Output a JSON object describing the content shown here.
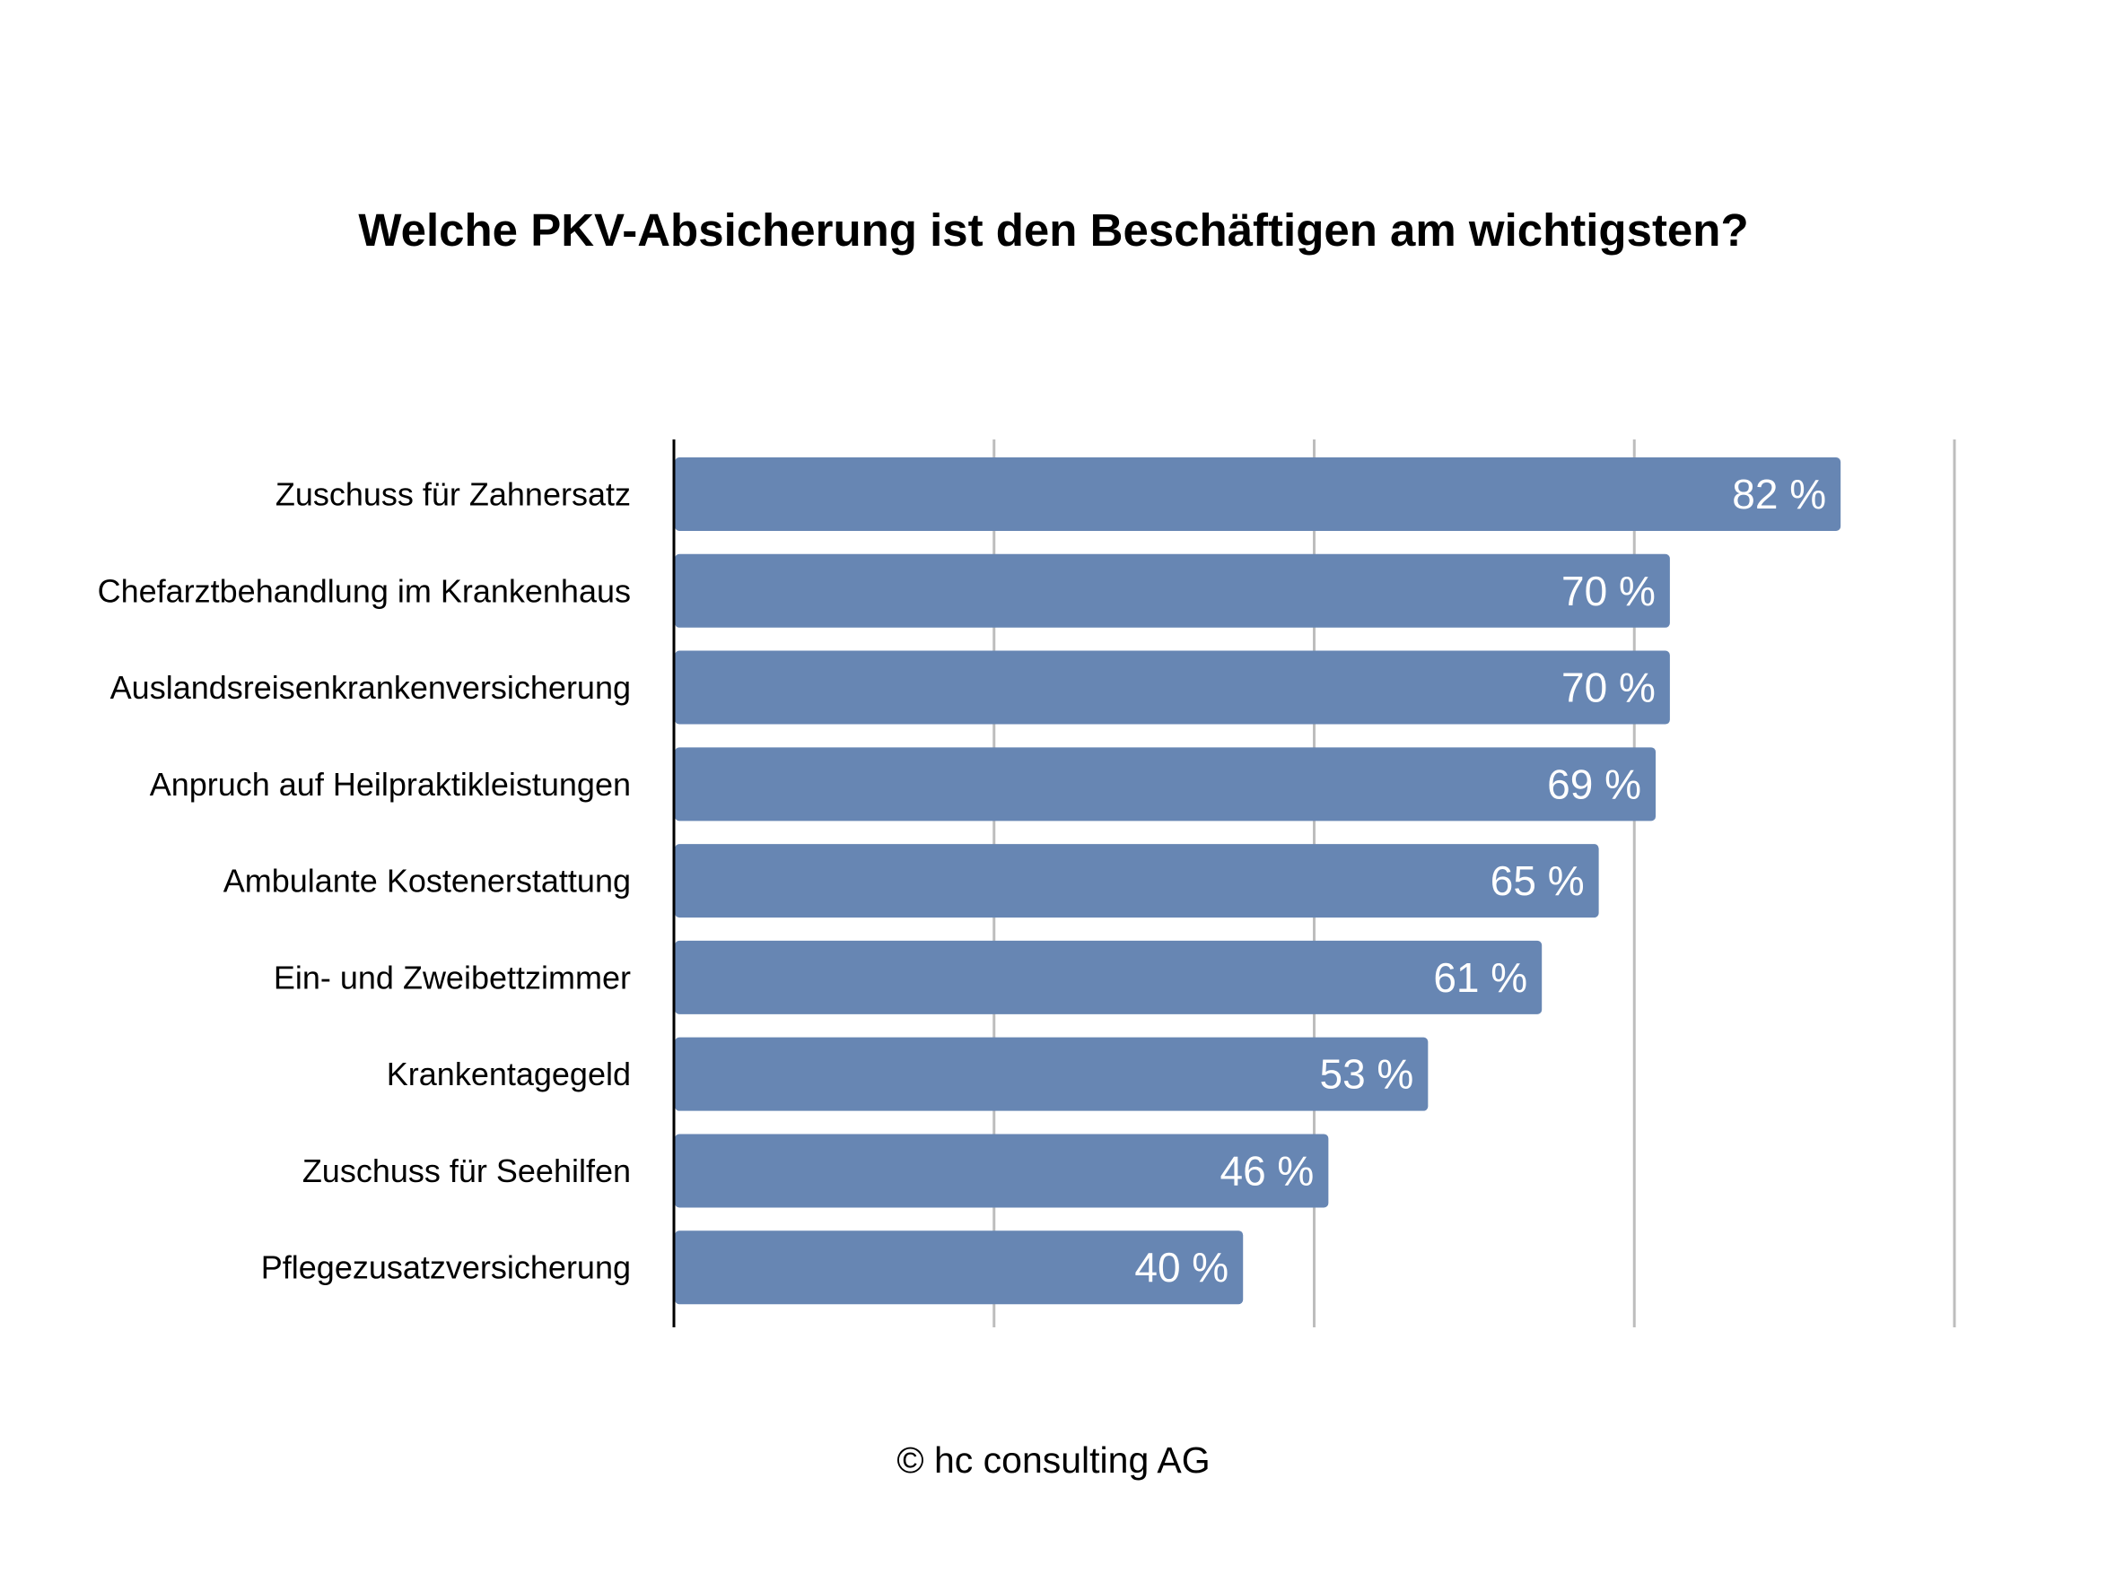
{
  "chart_data": {
    "type": "bar",
    "orientation": "horizontal",
    "title": "Welche PKV-Absicherung ist den Beschäftigen am wichtigsten?",
    "categories": [
      "Zuschuss für Zahnersatz",
      "Chefarztbehandlung im Krankenhaus",
      "Auslandsreisenkrankenversicherung",
      "Anpruch auf Heilpraktikleistungen",
      "Ambulante Kostenerstattung",
      "Ein- und Zweibettzimmer",
      "Krankentagegeld",
      "Zuschuss für Seehilfen",
      "Pflegezusatzversicherung"
    ],
    "values": [
      82,
      70,
      70,
      69,
      65,
      61,
      53,
      46,
      40
    ],
    "value_labels": [
      "82 %",
      "70 %",
      "70 %",
      "69 %",
      "65 %",
      "61 %",
      "53 %",
      "46 %",
      "40 %"
    ],
    "xlim": [
      0,
      90
    ],
    "x_gridlines": [
      22.5,
      45,
      67.5,
      90
    ],
    "grid": true,
    "legend": "none",
    "bar_color": "#6786b3"
  },
  "footer": {
    "copyright": "© hc consulting AG"
  }
}
